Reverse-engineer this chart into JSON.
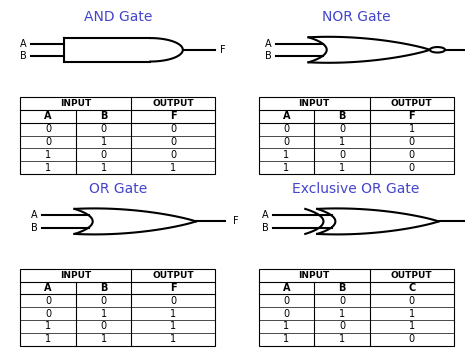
{
  "title_and": "AND Gate",
  "title_nor": "NOR Gate",
  "title_or": "OR Gate",
  "title_xor": "Exclusive OR Gate",
  "title_color": "#4444cc",
  "bg_color": "#ffffff",
  "and_truth": {
    "A": [
      0,
      0,
      1,
      1
    ],
    "B": [
      0,
      1,
      0,
      1
    ],
    "F": [
      0,
      0,
      0,
      1
    ]
  },
  "nor_truth": {
    "A": [
      0,
      0,
      1,
      1
    ],
    "B": [
      0,
      1,
      0,
      1
    ],
    "F": [
      1,
      0,
      0,
      0
    ]
  },
  "or_truth": {
    "A": [
      0,
      0,
      1,
      1
    ],
    "B": [
      0,
      1,
      0,
      1
    ],
    "F": [
      0,
      1,
      1,
      1
    ]
  },
  "xor_truth": {
    "A": [
      0,
      0,
      1,
      1
    ],
    "B": [
      0,
      1,
      0,
      1
    ],
    "C": [
      0,
      1,
      1,
      0
    ]
  },
  "line_color": "#000000",
  "font_size_title": 10,
  "font_size_label": 7,
  "font_size_table": 6.5
}
